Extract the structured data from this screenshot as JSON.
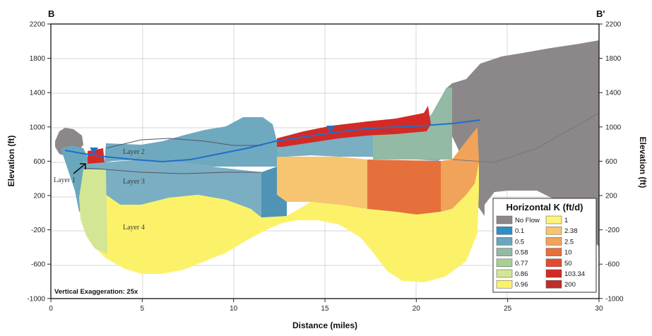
{
  "section": {
    "start_label": "B",
    "end_label": "B'",
    "vertical_exaggeration": "Vertical Exaggeration: 25x",
    "x_axis_title": "Distance (miles)",
    "y_axis_title_left": "Elevation (ft)",
    "y_axis_title_right": "Elevation (ft)",
    "x_ticks": [
      "0",
      "5",
      "10",
      "15",
      "20",
      "25",
      "30"
    ],
    "y_ticks_left": [
      "2200",
      "1800",
      "1400",
      "1000",
      "600",
      "200",
      "-200",
      "-600",
      "-1000"
    ],
    "y_ticks_right": [
      "2200",
      "1800",
      "1400",
      "1000",
      "600",
      "200",
      "-200",
      "-600",
      "-1000"
    ]
  },
  "layers": [
    {
      "label": "Layer 2"
    },
    {
      "label": "Layer 3"
    },
    {
      "label": "Layer 4"
    },
    {
      "label": "Layer 1"
    }
  ],
  "legend": {
    "title": "Horizontal K (ft/d)",
    "left_column": [
      {
        "label": "No Flow",
        "color": "#8c8789"
      },
      {
        "label": "0.1",
        "color": "#2e8fc7"
      },
      {
        "label": "0.5",
        "color": "#69a7bd"
      },
      {
        "label": "0.58",
        "color": "#93baa4"
      },
      {
        "label": "0.77",
        "color": "#a9cf95"
      },
      {
        "label": "0.86",
        "color": "#d2e694"
      },
      {
        "label": "0.96",
        "color": "#fbf26a"
      }
    ],
    "right_column": [
      {
        "label": "1",
        "color": "#fdf47a"
      },
      {
        "label": "2.38",
        "color": "#f7c46f"
      },
      {
        "label": "2.5",
        "color": "#f1a35a"
      },
      {
        "label": "10",
        "color": "#e5703b"
      },
      {
        "label": "50",
        "color": "#e34b30"
      },
      {
        "label": "103.34",
        "color": "#d42a26"
      },
      {
        "label": "200",
        "color": "#bf2d2d"
      }
    ]
  }
}
